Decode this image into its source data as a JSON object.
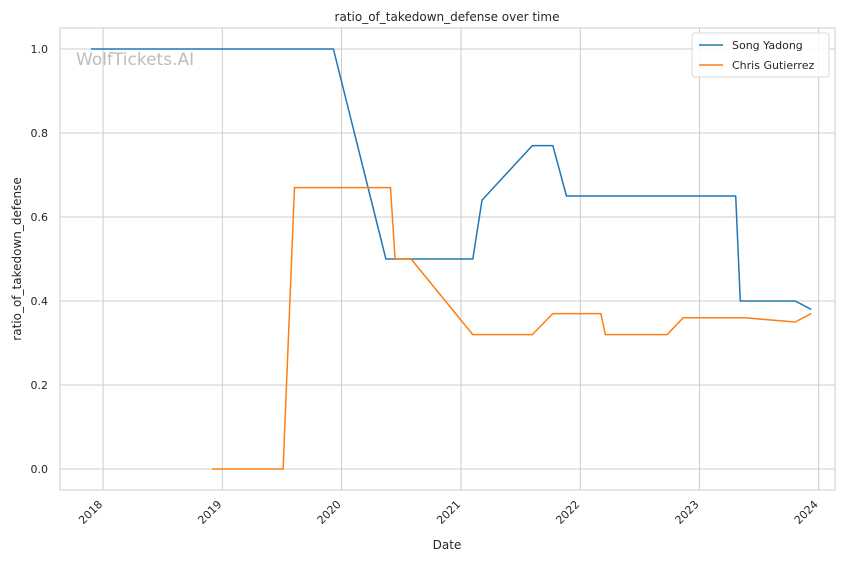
{
  "chart_data": {
    "type": "line",
    "title": "ratio_of_takedown_defense over time",
    "xlabel": "Date",
    "ylabel": "ratio_of_takedown_defense",
    "watermark": "WolfTickets.AI",
    "x_ticks": [
      "2018",
      "2019",
      "2020",
      "2021",
      "2022",
      "2023",
      "2024"
    ],
    "y_ticks": [
      "0.0",
      "0.2",
      "0.4",
      "0.6",
      "0.8",
      "1.0"
    ],
    "xlim": [
      "2017-08-22",
      "2024-02-20"
    ],
    "ylim": [
      -0.05,
      1.05
    ],
    "grid": true,
    "legend": "top-right",
    "colors": {
      "Song Yadong": "#1f77b4",
      "Chris Gutierrez": "#ff7f0e"
    },
    "series": [
      {
        "name": "Song Yadong",
        "points": [
          [
            "2017-11-25",
            1.0
          ],
          [
            "2019-12-07",
            1.0
          ],
          [
            "2020-05-16",
            0.5
          ],
          [
            "2021-02-06",
            0.5
          ],
          [
            "2021-03-06",
            0.64
          ],
          [
            "2021-08-07",
            0.77
          ],
          [
            "2021-10-09",
            0.77
          ],
          [
            "2021-11-20",
            0.65
          ],
          [
            "2023-04-22",
            0.65
          ],
          [
            "2023-05-06",
            0.4
          ],
          [
            "2023-10-21",
            0.4
          ],
          [
            "2023-12-09",
            0.38
          ]
        ]
      },
      {
        "name": "Chris Gutierrez",
        "points": [
          [
            "2018-12-01",
            0.0
          ],
          [
            "2019-07-06",
            0.0
          ],
          [
            "2019-08-10",
            0.67
          ],
          [
            "2020-05-30",
            0.67
          ],
          [
            "2020-06-13",
            0.5
          ],
          [
            "2020-08-01",
            0.5
          ],
          [
            "2021-02-06",
            0.32
          ],
          [
            "2021-08-07",
            0.32
          ],
          [
            "2021-10-09",
            0.37
          ],
          [
            "2022-03-05",
            0.37
          ],
          [
            "2022-03-19",
            0.32
          ],
          [
            "2022-09-24",
            0.32
          ],
          [
            "2022-11-12",
            0.36
          ],
          [
            "2023-05-20",
            0.36
          ],
          [
            "2023-10-21",
            0.35
          ],
          [
            "2023-12-09",
            0.37
          ]
        ]
      }
    ]
  }
}
